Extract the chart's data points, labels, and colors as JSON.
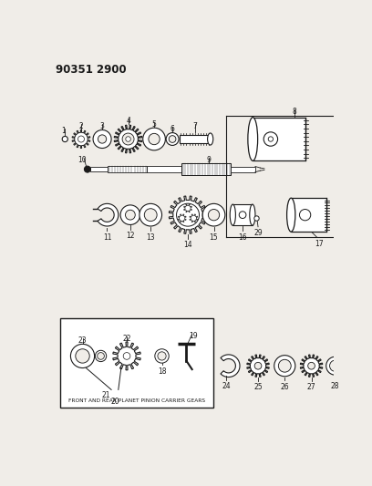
{
  "title": "90351 2900",
  "background_color": "#f0ede8",
  "line_color": "#1a1a1a",
  "text_color": "#1a1a1a",
  "figsize": [
    4.08,
    5.33
  ],
  "dpi": 100,
  "labels": {
    "title": "90351 2900",
    "inset_caption": "FRONT AND REAR PLANET PINION CARRIER GEARS"
  }
}
